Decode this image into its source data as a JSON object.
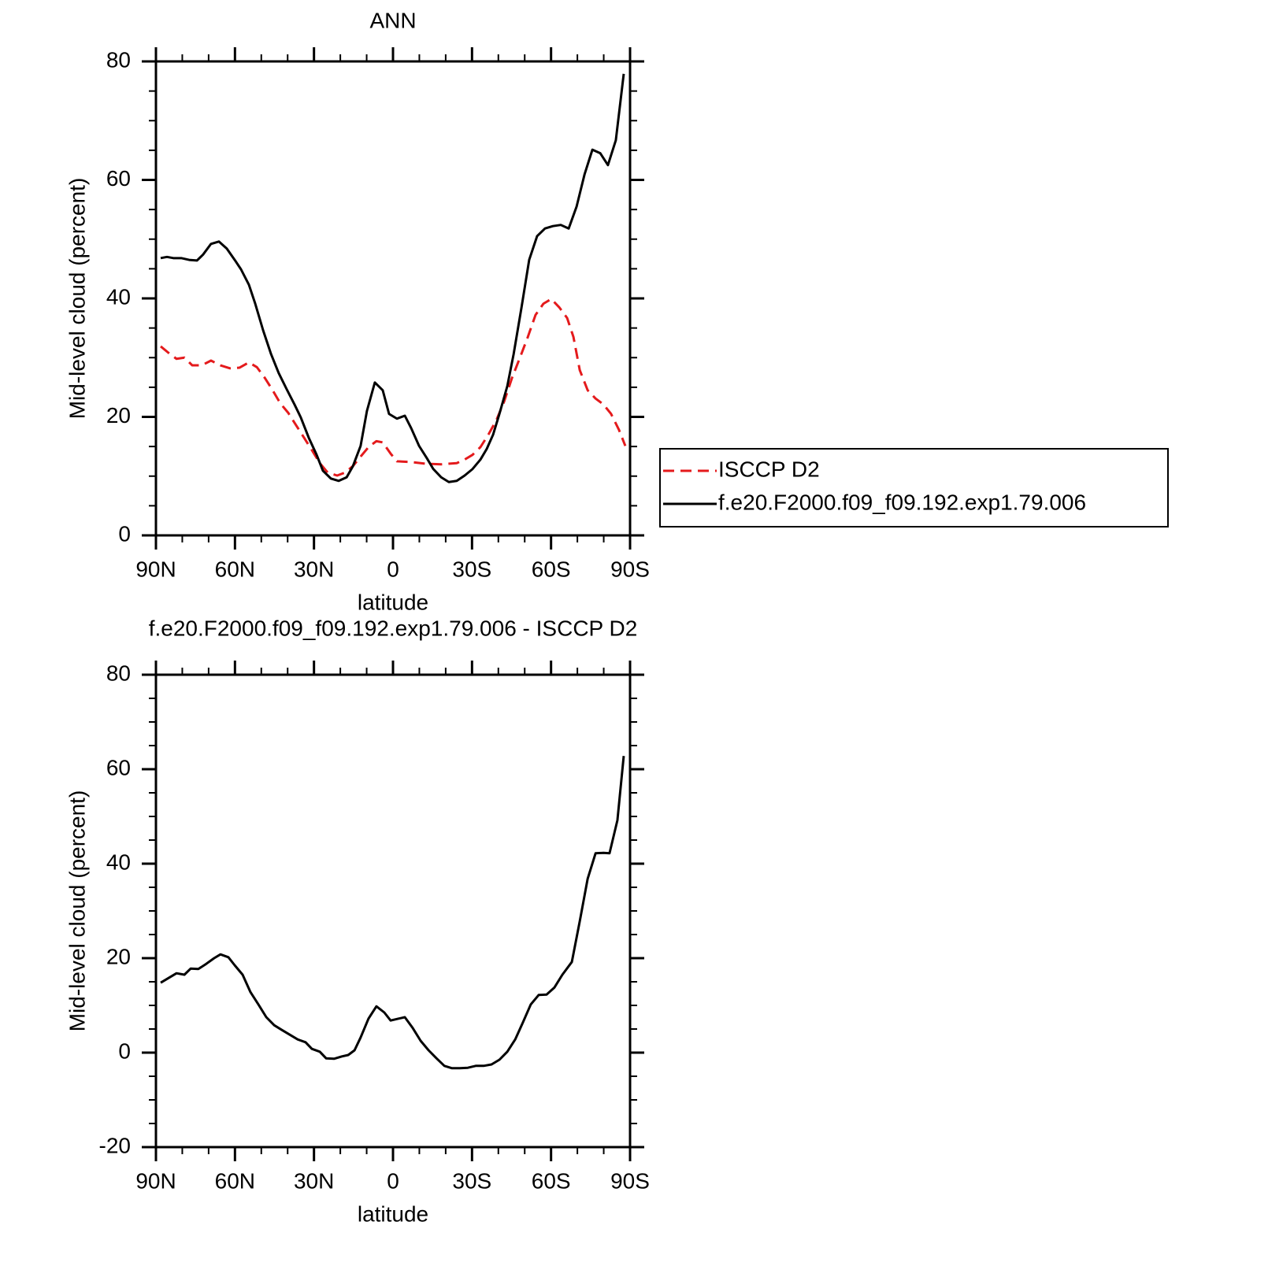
{
  "chart_data": [
    {
      "type": "line",
      "title": "ANN",
      "xlabel": "latitude",
      "ylabel": "Mid-level cloud (percent)",
      "xlim": [
        90,
        -90
      ],
      "xticks": [
        {
          "value": 90,
          "label": "90N"
        },
        {
          "value": 60,
          "label": "60N"
        },
        {
          "value": 30,
          "label": "30N"
        },
        0,
        {
          "value": -30,
          "label": "30S"
        },
        {
          "value": -60,
          "label": "60S"
        },
        {
          "value": -90,
          "label": "90S"
        }
      ],
      "xminorticks": [
        80,
        70,
        50,
        40,
        20,
        10,
        -10,
        -20,
        -40,
        -50,
        -70,
        -80
      ],
      "ylim": [
        0,
        80
      ],
      "yticks": [
        0,
        20,
        40,
        60,
        80
      ],
      "yminorticks": [
        5,
        10,
        15,
        25,
        30,
        35,
        45,
        50,
        55,
        65,
        70,
        75
      ],
      "series": [
        {
          "name": "ISCCP D2",
          "color": "#e41a1c",
          "dashed": true,
          "x": [
            88.2,
            85.2,
            82.2,
            79.2,
            76.2,
            72.6,
            69.1,
            65.5,
            61.9,
            58.3,
            54.7,
            51.7,
            48.7,
            45.7,
            42.8,
            39.8,
            36.8,
            33.8,
            30.8,
            27.8,
            24.8,
            21.2,
            18.2,
            15.2,
            12.3,
            9.3,
            6.3,
            3.9,
            0.9,
            -1.5,
            -6.3,
            -12.3,
            -18.3,
            -24.2,
            -27.2,
            -30.2,
            -33.2,
            -36.2,
            -39.2,
            -42.2,
            -45.2,
            -48.2,
            -51.2,
            -54.1,
            -57.1,
            -60.1,
            -63.1,
            -66.1,
            -68.5,
            -70.9,
            -73.9,
            -76.9,
            -79.9,
            -82.8,
            -85.8,
            -88.2
          ],
          "values": [
            31.9,
            30.8,
            29.8,
            30.0,
            28.7,
            28.7,
            29.5,
            28.7,
            28.2,
            28.3,
            29.2,
            28.4,
            26.6,
            24.5,
            22.3,
            20.7,
            18.6,
            16.5,
            14.4,
            12.2,
            10.6,
            10.1,
            10.6,
            11.7,
            13.3,
            14.9,
            15.9,
            15.7,
            13.8,
            12.5,
            12.4,
            12.1,
            12.0,
            12.2,
            12.8,
            13.6,
            14.9,
            17.0,
            19.4,
            22.6,
            26.6,
            30.0,
            33.5,
            37.2,
            39.1,
            39.9,
            38.5,
            36.7,
            33.5,
            27.9,
            24.5,
            23.1,
            22.1,
            20.5,
            17.8,
            15.1
          ]
        },
        {
          "name": "f.e20.F2000.f09_f09.192.exp1.79.006",
          "color": "#000000",
          "dashed": false,
          "x": [
            88.2,
            85.8,
            83.4,
            80.4,
            77.4,
            74.4,
            72.1,
            69.1,
            66.1,
            63.1,
            60.1,
            57.7,
            54.7,
            52.3,
            49.3,
            46.3,
            43.4,
            40.4,
            37.4,
            35.0,
            32.0,
            29.0,
            26.6,
            23.6,
            20.6,
            17.6,
            15.2,
            12.3,
            9.9,
            6.9,
            3.9,
            1.5,
            -1.5,
            -4.5,
            -6.9,
            -9.9,
            -12.9,
            -15.3,
            -18.3,
            -21.2,
            -24.2,
            -27.2,
            -30.2,
            -33.2,
            -35.6,
            -38.0,
            -40.4,
            -43.4,
            -45.8,
            -48.8,
            -51.7,
            -54.7,
            -57.7,
            -60.7,
            -63.7,
            -66.7,
            -69.7,
            -72.7,
            -75.7,
            -78.7,
            -81.6,
            -84.6,
            -87.6
          ],
          "values": [
            46.8,
            47.0,
            46.8,
            46.8,
            46.5,
            46.4,
            47.4,
            49.2,
            49.6,
            48.4,
            46.5,
            44.9,
            42.3,
            39.1,
            34.6,
            30.6,
            27.4,
            24.7,
            22.1,
            19.9,
            16.5,
            13.6,
            10.9,
            9.6,
            9.2,
            9.8,
            11.7,
            15.1,
            21.0,
            25.8,
            24.5,
            20.5,
            19.7,
            20.2,
            18.1,
            15.1,
            13.0,
            11.2,
            9.8,
            9.0,
            9.2,
            10.1,
            11.2,
            12.8,
            14.6,
            17.0,
            20.5,
            25.2,
            30.6,
            38.5,
            46.5,
            50.5,
            51.8,
            52.2,
            52.4,
            51.8,
            55.5,
            60.9,
            65.1,
            64.5,
            62.5,
            66.7,
            77.9
          ]
        }
      ]
    },
    {
      "type": "line",
      "title": "f.e20.F2000.f09_f09.192.exp1.79.006 - ISCCP D2",
      "xlabel": "latitude",
      "ylabel": "Mid-level cloud (percent)",
      "xlim": [
        90,
        -90
      ],
      "xticks": [
        {
          "value": 90,
          "label": "90N"
        },
        {
          "value": 60,
          "label": "60N"
        },
        {
          "value": 30,
          "label": "30N"
        },
        0,
        {
          "value": -30,
          "label": "30S"
        },
        {
          "value": -60,
          "label": "60S"
        },
        {
          "value": -90,
          "label": "90S"
        }
      ],
      "xminorticks": [
        80,
        70,
        50,
        40,
        20,
        10,
        -10,
        -20,
        -40,
        -50,
        -70,
        -80
      ],
      "ylim": [
        -20,
        80
      ],
      "yticks": [
        -20,
        0,
        20,
        40,
        60,
        80
      ],
      "yminorticks": [
        -15,
        -10,
        -5,
        5,
        10,
        15,
        25,
        30,
        35,
        45,
        50,
        55,
        65,
        70,
        75
      ],
      "series": [
        {
          "color": "#000000",
          "dashed": false,
          "x": [
            88.2,
            85.2,
            82.2,
            79.2,
            76.8,
            73.9,
            70.9,
            67.9,
            65.5,
            62.5,
            60.1,
            57.1,
            54.1,
            51.1,
            48.1,
            45.1,
            42.2,
            39.2,
            36.2,
            33.2,
            30.8,
            27.8,
            25.4,
            22.4,
            19.4,
            17.0,
            14.6,
            12.3,
            9.3,
            6.3,
            3.3,
            0.9,
            -2.1,
            -4.5,
            -7.5,
            -10.5,
            -13.5,
            -16.5,
            -19.5,
            -22.4,
            -25.4,
            -28.4,
            -31.4,
            -34.4,
            -37.4,
            -40.4,
            -43.4,
            -46.4,
            -49.4,
            -52.3,
            -55.3,
            -58.3,
            -61.3,
            -64.3,
            -67.9,
            -70.9,
            -73.9,
            -76.9,
            -79.9,
            -82.2,
            -85.2,
            -87.6
          ],
          "values": [
            14.8,
            15.8,
            16.8,
            16.5,
            17.8,
            17.7,
            18.8,
            20.0,
            20.8,
            20.2,
            18.5,
            16.5,
            12.8,
            10.2,
            7.5,
            5.8,
            4.8,
            3.8,
            2.8,
            2.2,
            0.8,
            0.2,
            -1.2,
            -1.3,
            -0.8,
            -0.5,
            0.5,
            3.2,
            7.2,
            9.8,
            8.5,
            6.8,
            7.2,
            7.5,
            5.2,
            2.5,
            0.5,
            -1.2,
            -2.8,
            -3.3,
            -3.3,
            -3.2,
            -2.8,
            -2.8,
            -2.5,
            -1.5,
            0.2,
            2.8,
            6.5,
            10.2,
            12.2,
            12.3,
            13.8,
            16.5,
            19.2,
            27.8,
            36.8,
            42.2,
            42.3,
            42.2,
            49.2,
            62.8
          ]
        }
      ]
    }
  ]
}
